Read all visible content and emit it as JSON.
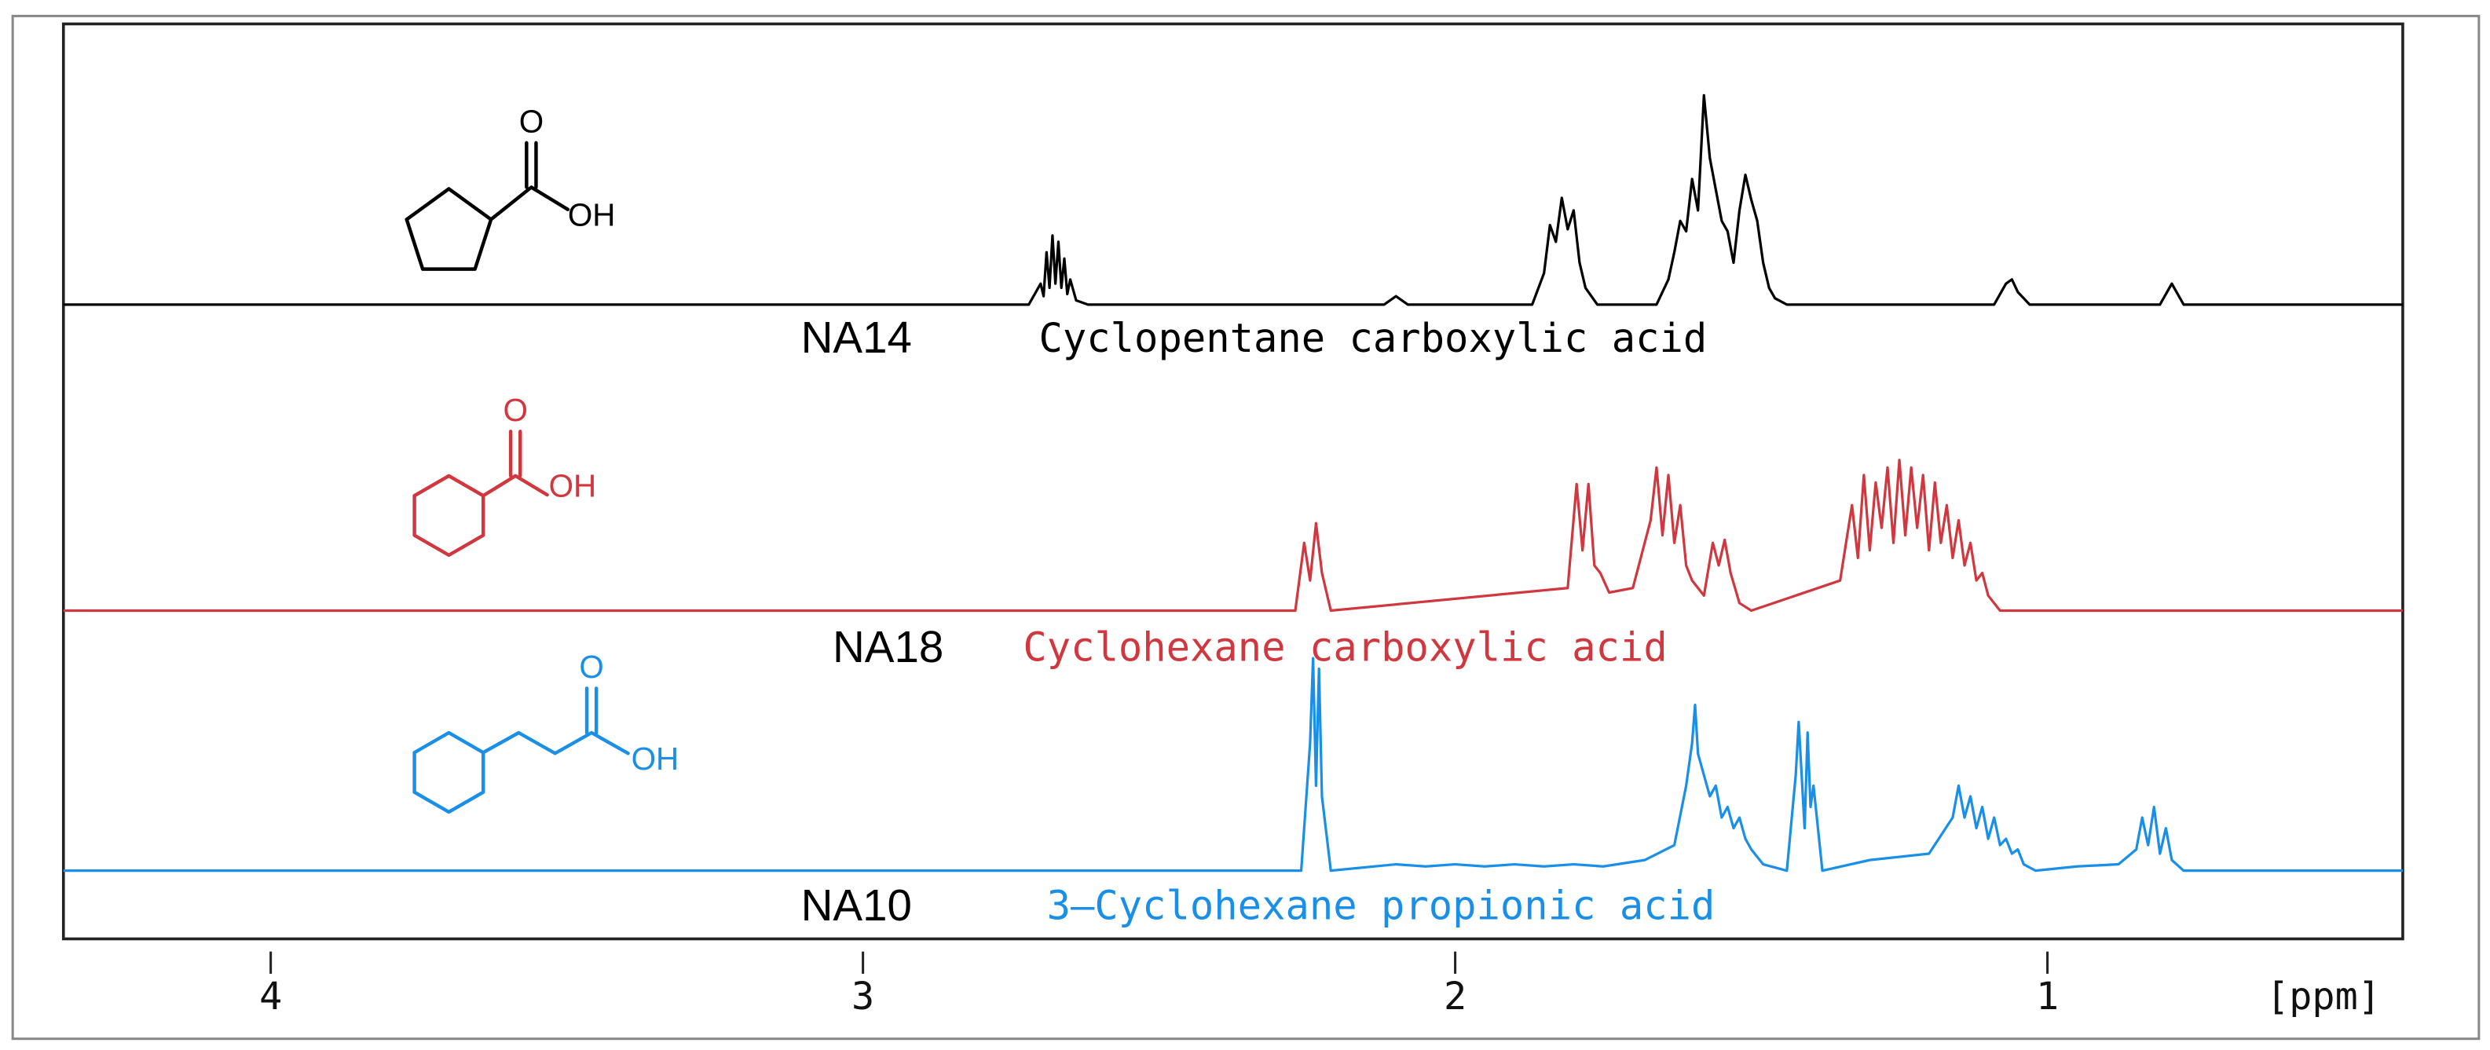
{
  "chart_data": {
    "type": "line",
    "x_label": "[ppm]",
    "xlim": [
      4.35,
      0.4
    ],
    "xticks": [
      4,
      3,
      2,
      1
    ],
    "series": [
      {
        "name": "Cyclopentane carboxylic acid",
        "code": "NA14",
        "color": "#000000",
        "atom_labels": [
          "O",
          "OH"
        ],
        "x": [
          4.35,
          2.72,
          2.7,
          2.695,
          2.69,
          2.685,
          2.68,
          2.675,
          2.67,
          2.665,
          2.66,
          2.655,
          2.65,
          2.64,
          2.62,
          2.12,
          2.1,
          2.08,
          1.87,
          1.85,
          1.84,
          1.83,
          1.82,
          1.81,
          1.8,
          1.79,
          1.78,
          1.76,
          1.66,
          1.64,
          1.63,
          1.62,
          1.61,
          1.6,
          1.59,
          1.58,
          1.57,
          1.56,
          1.55,
          1.54,
          1.53,
          1.52,
          1.51,
          1.5,
          1.49,
          1.48,
          1.47,
          1.46,
          1.44,
          1.09,
          1.07,
          1.06,
          1.05,
          1.03,
          0.81,
          0.79,
          0.77,
          0.4
        ],
        "values": [
          0,
          0,
          10,
          4,
          25,
          8,
          33,
          10,
          30,
          8,
          22,
          5,
          12,
          2,
          0,
          0,
          4,
          0,
          0,
          15,
          38,
          30,
          51,
          36,
          45,
          20,
          8,
          0,
          0,
          12,
          25,
          40,
          35,
          60,
          45,
          100,
          70,
          55,
          40,
          35,
          20,
          45,
          62,
          50,
          40,
          20,
          8,
          3,
          0,
          0,
          10,
          12,
          6,
          0,
          0,
          10,
          0,
          0
        ]
      },
      {
        "name": "Cyclohexane carboxylic acid",
        "code": "NA18",
        "color": "#d0373f",
        "atom_labels": [
          "O",
          "OH"
        ],
        "x": [
          4.35,
          2.27,
          2.255,
          2.245,
          2.235,
          2.225,
          2.21,
          1.81,
          1.795,
          1.785,
          1.775,
          1.765,
          1.755,
          1.74,
          1.7,
          1.67,
          1.66,
          1.65,
          1.64,
          1.63,
          1.62,
          1.61,
          1.6,
          1.58,
          1.565,
          1.555,
          1.545,
          1.535,
          1.52,
          1.5,
          1.35,
          1.33,
          1.32,
          1.31,
          1.3,
          1.29,
          1.28,
          1.27,
          1.26,
          1.25,
          1.24,
          1.23,
          1.22,
          1.21,
          1.2,
          1.19,
          1.18,
          1.17,
          1.16,
          1.15,
          1.14,
          1.13,
          1.12,
          1.11,
          1.1,
          1.08,
          0.4
        ],
        "values": [
          0,
          0,
          45,
          20,
          58,
          25,
          0,
          15,
          84,
          40,
          84,
          30,
          25,
          12,
          15,
          60,
          95,
          50,
          90,
          45,
          70,
          30,
          20,
          10,
          45,
          30,
          47,
          25,
          5,
          0,
          20,
          70,
          35,
          90,
          40,
          85,
          55,
          95,
          45,
          100,
          50,
          95,
          55,
          90,
          40,
          85,
          45,
          70,
          35,
          60,
          30,
          45,
          20,
          25,
          10,
          0,
          0
        ]
      },
      {
        "name": "3–Cyclohexane propionic acid",
        "code": "NA10",
        "color": "#1a8fe8",
        "atom_labels": [
          "O",
          "OH"
        ],
        "x": [
          4.35,
          2.26,
          2.245,
          2.24,
          2.235,
          2.23,
          2.225,
          2.21,
          2.1,
          2.05,
          2.0,
          1.95,
          1.9,
          1.85,
          1.8,
          1.75,
          1.68,
          1.63,
          1.61,
          1.6,
          1.595,
          1.59,
          1.58,
          1.57,
          1.56,
          1.55,
          1.54,
          1.53,
          1.52,
          1.51,
          1.5,
          1.48,
          1.44,
          1.425,
          1.42,
          1.41,
          1.405,
          1.4,
          1.395,
          1.38,
          1.3,
          1.2,
          1.16,
          1.15,
          1.14,
          1.13,
          1.12,
          1.11,
          1.1,
          1.09,
          1.08,
          1.07,
          1.06,
          1.05,
          1.04,
          1.02,
          0.95,
          0.88,
          0.85,
          0.84,
          0.83,
          0.82,
          0.81,
          0.8,
          0.79,
          0.77,
          0.4
        ],
        "values": [
          0,
          0,
          60,
          100,
          40,
          95,
          35,
          0,
          3,
          2,
          3,
          2,
          3,
          2,
          3,
          2,
          5,
          12,
          40,
          60,
          78,
          55,
          45,
          35,
          40,
          25,
          30,
          20,
          25,
          15,
          10,
          3,
          0,
          45,
          70,
          20,
          65,
          30,
          40,
          0,
          5,
          8,
          25,
          40,
          25,
          35,
          20,
          30,
          15,
          25,
          12,
          15,
          8,
          10,
          3,
          0,
          2,
          3,
          10,
          25,
          12,
          30,
          8,
          20,
          5,
          0,
          0
        ]
      }
    ]
  }
}
